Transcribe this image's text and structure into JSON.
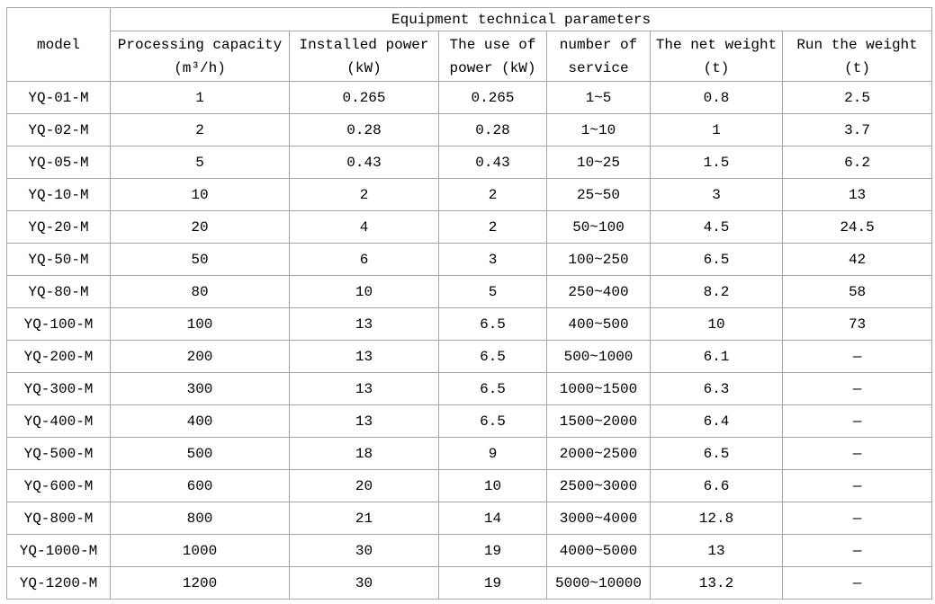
{
  "style": {
    "background": "#ffffff",
    "text_color": "#000000",
    "border_color": "#a6a6a6"
  },
  "chart_data": {
    "type": "table",
    "title": "Equipment technical parameters",
    "corner_header": "model",
    "column_keys": [
      "processing-capacity",
      "installed-power",
      "use-of-power",
      "number-of-service",
      "net-weight",
      "run-weight"
    ],
    "columns": [
      "Processing capacity\n(m³/h)",
      "Installed power\n(kW)",
      "The use of\npower (kW)",
      "number of\nservice",
      "The net weight\n(t)",
      "Run the weight\n(t)"
    ],
    "rows": [
      [
        "YQ-01-M",
        "1",
        "0.265",
        "0.265",
        "1~5",
        "0.8",
        "2.5"
      ],
      [
        "YQ-02-M",
        "2",
        "0.28",
        "0.28",
        "1~10",
        "1",
        "3.7"
      ],
      [
        "YQ-05-M",
        "5",
        "0.43",
        "0.43",
        "10~25",
        "1.5",
        "6.2"
      ],
      [
        "YQ-10-M",
        "10",
        "2",
        "2",
        "25~50",
        "3",
        "13"
      ],
      [
        "YQ-20-M",
        "20",
        "4",
        "2",
        "50~100",
        "4.5",
        "24.5"
      ],
      [
        "YQ-50-M",
        "50",
        "6",
        "3",
        "100~250",
        "6.5",
        "42"
      ],
      [
        "YQ-80-M",
        "80",
        "10",
        "5",
        "250~400",
        "8.2",
        "58"
      ],
      [
        "YQ-100-M",
        "100",
        "13",
        "6.5",
        "400~500",
        "10",
        "73"
      ],
      [
        "YQ-200-M",
        "200",
        "13",
        "6.5",
        "500~1000",
        "6.1",
        "—"
      ],
      [
        "YQ-300-M",
        "300",
        "13",
        "6.5",
        "1000~1500",
        "6.3",
        "—"
      ],
      [
        "YQ-400-M",
        "400",
        "13",
        "6.5",
        "1500~2000",
        "6.4",
        "—"
      ],
      [
        "YQ-500-M",
        "500",
        "18",
        "9",
        "2000~2500",
        "6.5",
        "—"
      ],
      [
        "YQ-600-M",
        "600",
        "20",
        "10",
        "2500~3000",
        "6.6",
        "—"
      ],
      [
        "YQ-800-M",
        "800",
        "21",
        "14",
        "3000~4000",
        "12.8",
        "—"
      ],
      [
        "YQ-1000-M",
        "1000",
        "30",
        "19",
        "4000~5000",
        "13",
        "—"
      ],
      [
        "YQ-1200-M",
        "1200",
        "30",
        "19",
        "5000~10000",
        "13.2",
        "—"
      ]
    ]
  }
}
